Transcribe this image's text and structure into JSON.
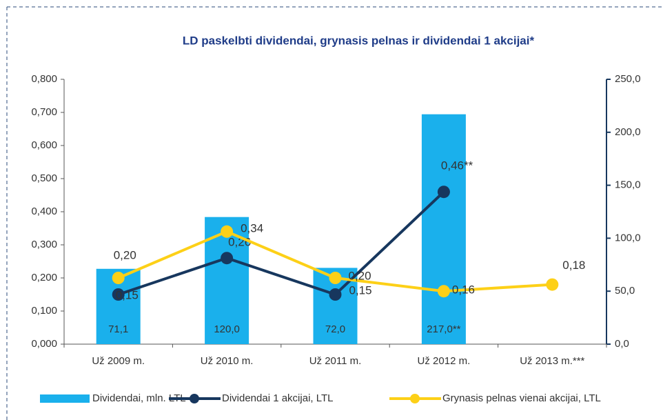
{
  "chart_data": {
    "type": "bar",
    "title": "LD paskelbti dividendai, grynasis pelnas ir dividendai 1 akcijai*",
    "categories": [
      "Už 2009 m.",
      "Už 2010 m.",
      "Už 2011 m.",
      "Už 2012 m.",
      "Už 2013 m.***"
    ],
    "series": [
      {
        "name": "Dividendai, mln. LTL",
        "type": "bar",
        "axis": "y2",
        "color": "#1ab0ec",
        "values": [
          71.1,
          120.0,
          72.0,
          217.0,
          null
        ],
        "value_labels": [
          "71,1",
          "120,0",
          "72,0",
          "217,0**",
          null
        ]
      },
      {
        "name": "Dividendai 1 akcijai, LTL",
        "type": "line",
        "color": "#17375e",
        "values": [
          0.15,
          0.26,
          0.15,
          0.46,
          null
        ],
        "value_labels": [
          "0,15",
          "0,26",
          "0,15",
          "0,46**",
          null
        ]
      },
      {
        "name": "Grynasis pelnas vienai akcijai, LTL",
        "type": "line",
        "color": "#fdd017",
        "values": [
          0.2,
          0.34,
          0.2,
          0.16,
          0.18
        ],
        "value_labels": [
          "0,20",
          "0,34",
          "0,20",
          "0,16",
          "0,18"
        ]
      }
    ],
    "ylim": [
      0,
      0.8
    ],
    "yticks": [
      {
        "value": 0,
        "label": "0,000"
      },
      {
        "value": 0.1,
        "label": "0,100"
      },
      {
        "value": 0.2,
        "label": "0,200"
      },
      {
        "value": 0.3,
        "label": "0,300"
      },
      {
        "value": 0.4,
        "label": "0,400"
      },
      {
        "value": 0.5,
        "label": "0,500"
      },
      {
        "value": 0.6,
        "label": "0,600"
      },
      {
        "value": 0.7,
        "label": "0,700"
      },
      {
        "value": 0.8,
        "label": "0,800"
      }
    ],
    "y2lim": [
      0,
      250
    ],
    "y2ticks": [
      {
        "value": 0,
        "label": "0,0"
      },
      {
        "value": 50,
        "label": "50,0"
      },
      {
        "value": 100,
        "label": "100,0"
      },
      {
        "value": 150,
        "label": "150,0"
      },
      {
        "value": 200,
        "label": "200,0"
      },
      {
        "value": 250,
        "label": "250,0"
      }
    ],
    "legend": "bottom"
  }
}
